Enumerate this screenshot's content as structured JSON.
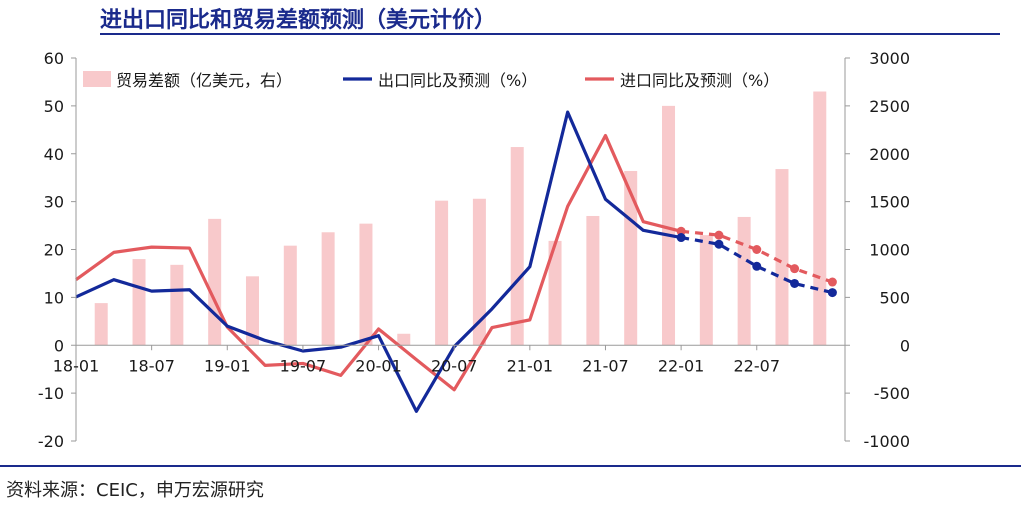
{
  "page": {
    "title": "进出口同比和贸易差额预测（美元计价）",
    "source": "资料来源：CEIC，申万宏源研究"
  },
  "colors": {
    "title": "#1a2a8c",
    "bar": "#f8c9cb",
    "export": "#13299a",
    "import": "#e35a5e"
  },
  "chart_data": {
    "type": "bar+line",
    "x_ticks": [
      "18-01",
      "18-07",
      "19-01",
      "19-07",
      "20-01",
      "20-07",
      "21-01",
      "21-07",
      "22-01",
      "22-07"
    ],
    "x_tick_months": [
      0,
      6,
      12,
      18,
      24,
      30,
      36,
      42,
      48,
      54
    ],
    "y_left": {
      "min": -20,
      "max": 60,
      "ticks": [
        -20,
        -10,
        0,
        10,
        20,
        30,
        40,
        50,
        60
      ]
    },
    "y_right": {
      "min": -1000,
      "max": 3000,
      "ticks": [
        -1000,
        -500,
        0,
        500,
        1000,
        1500,
        2000,
        2500,
        3000
      ]
    },
    "legend": [
      {
        "key": "bar",
        "label": "贸易差额（亿美元，右）"
      },
      {
        "key": "export",
        "label": "出口同比及预测（%）"
      },
      {
        "key": "import",
        "label": "进口同比及预测（%）"
      }
    ],
    "trade_balance": {
      "name": "贸易差额（亿美元，右）",
      "axis": "right",
      "months": [
        2,
        5,
        8,
        11,
        14,
        17,
        20,
        23,
        26,
        29,
        32,
        35,
        38,
        41,
        44,
        47,
        50,
        53,
        56,
        59
      ],
      "values": [
        440,
        900,
        840,
        1320,
        720,
        1040,
        1180,
        1270,
        120,
        1510,
        1530,
        2070,
        1090,
        1350,
        1820,
        2500,
        1150,
        1340,
        1840,
        2650
      ]
    },
    "export_actual": {
      "name": "出口同比及预测（%）",
      "axis": "left",
      "months": [
        0,
        3,
        6,
        9,
        12,
        15,
        18,
        21,
        24,
        27,
        30,
        33,
        36,
        39,
        42,
        45,
        48
      ],
      "values": [
        10.1,
        13.7,
        11.3,
        11.6,
        4.0,
        1.0,
        -1.2,
        -0.4,
        2.0,
        -13.8,
        -0.3,
        7.6,
        16.4,
        48.7,
        30.5,
        24.0,
        22.5
      ]
    },
    "export_forecast": {
      "months": [
        48,
        51,
        54,
        57,
        60
      ],
      "values": [
        22.5,
        21.1,
        16.5,
        12.9,
        11.0
      ]
    },
    "import_actual": {
      "name": "进口同比及预测（%）",
      "axis": "left",
      "months": [
        0,
        3,
        6,
        9,
        12,
        15,
        18,
        21,
        24,
        27,
        30,
        33,
        36,
        39,
        42,
        45,
        48
      ],
      "values": [
        13.7,
        19.4,
        20.5,
        20.3,
        3.8,
        -4.2,
        -3.8,
        -6.3,
        3.4,
        -3.0,
        -9.3,
        3.7,
        5.3,
        29.0,
        43.8,
        25.8,
        23.8
      ]
    },
    "import_forecast": {
      "months": [
        48,
        51,
        54,
        57,
        60
      ],
      "values": [
        23.8,
        23.0,
        20.0,
        16.0,
        13.2
      ]
    }
  }
}
